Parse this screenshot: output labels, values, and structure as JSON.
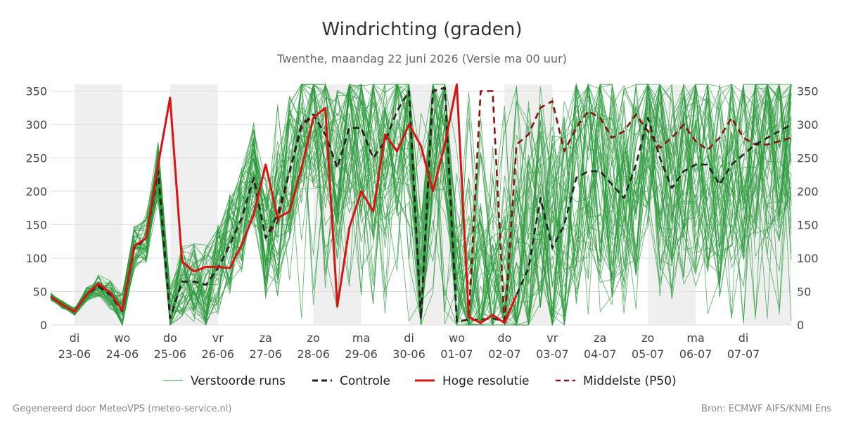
{
  "chart_data": {
    "type": "line",
    "title": "Windrichting (graden)",
    "subtitle": "Twenthe, maandag 22 juni 2026 (Versie ma 00 uur)",
    "xlabel": "",
    "ylabel": "",
    "ylim": [
      0,
      360
    ],
    "yticks": [
      0,
      50,
      100,
      150,
      200,
      250,
      300,
      350
    ],
    "x_range_hours": [
      -12,
      360
    ],
    "x_ticks": [
      {
        "day": "di",
        "date": "23-06"
      },
      {
        "day": "wo",
        "date": "24-06"
      },
      {
        "day": "do",
        "date": "25-06"
      },
      {
        "day": "vr",
        "date": "26-06"
      },
      {
        "day": "za",
        "date": "27-06"
      },
      {
        "day": "zo",
        "date": "28-06"
      },
      {
        "day": "ma",
        "date": "29-06"
      },
      {
        "day": "di",
        "date": "30-06"
      },
      {
        "day": "wo",
        "date": "01-07"
      },
      {
        "day": "do",
        "date": "02-07"
      },
      {
        "day": "vr",
        "date": "03-07"
      },
      {
        "day": "za",
        "date": "04-07"
      },
      {
        "day": "zo",
        "date": "05-07"
      },
      {
        "day": "ma",
        "date": "06-07"
      },
      {
        "day": "di",
        "date": "07-07"
      }
    ],
    "shaded_days": [
      [
        0,
        24
      ],
      [
        48,
        72
      ],
      [
        120,
        144
      ],
      [
        168,
        192
      ],
      [
        216,
        240
      ],
      [
        288,
        312
      ],
      [
        336,
        360
      ]
    ],
    "grid": true,
    "legend_position": "bottom",
    "ensemble_member_count": 50,
    "series": [
      {
        "name": "Controle",
        "color": "#222222",
        "style": "dashed",
        "x": [
          -12,
          -6,
          0,
          6,
          12,
          18,
          24,
          30,
          36,
          42,
          48,
          54,
          60,
          66,
          72,
          78,
          84,
          90,
          96,
          102,
          108,
          114,
          120,
          126,
          132,
          138,
          144,
          150,
          156,
          162,
          168,
          174,
          180,
          186,
          192,
          198,
          204,
          210,
          216,
          222,
          228,
          234,
          240,
          246,
          252,
          258,
          264,
          270,
          276,
          282,
          288,
          294,
          300,
          306,
          312,
          318,
          324,
          330,
          336,
          342,
          348,
          354,
          360
        ],
        "values": [
          42,
          30,
          20,
          45,
          58,
          45,
          20,
          115,
          130,
          230,
          10,
          65,
          65,
          60,
          85,
          120,
          160,
          220,
          130,
          165,
          230,
          300,
          315,
          285,
          235,
          295,
          295,
          250,
          275,
          320,
          350,
          10,
          350,
          355,
          5,
          8,
          8,
          10,
          5,
          45,
          85,
          190,
          115,
          150,
          220,
          230,
          230,
          210,
          190,
          240,
          310,
          250,
          205,
          230,
          240,
          240,
          210,
          240,
          255,
          270,
          280,
          290,
          300
        ]
      },
      {
        "name": "Hoge resolutie",
        "color": "#dd1111",
        "style": "solid",
        "x": [
          -12,
          -6,
          0,
          6,
          12,
          18,
          24,
          30,
          36,
          42,
          48,
          54,
          60,
          66,
          72,
          78,
          84,
          90,
          96,
          102,
          108,
          114,
          120,
          126,
          132,
          138,
          144,
          150,
          156,
          162,
          168,
          174,
          180,
          186,
          192,
          198,
          204,
          210,
          216,
          222
        ],
        "values": [
          42,
          30,
          20,
          45,
          62,
          48,
          22,
          118,
          130,
          240,
          340,
          95,
          80,
          87,
          87,
          85,
          120,
          165,
          240,
          160,
          170,
          235,
          310,
          325,
          28,
          145,
          200,
          170,
          285,
          260,
          300,
          268,
          200,
          270,
          360,
          12,
          3,
          15,
          3,
          45
        ]
      },
      {
        "name": "Middelste (P50)",
        "color": "#8b1010",
        "style": "dashed",
        "x": [
          -12,
          -6,
          0,
          6,
          12,
          18,
          24,
          30,
          36,
          42,
          48,
          54,
          60,
          66,
          72,
          78,
          84,
          90,
          96,
          102,
          108,
          114,
          120,
          126,
          132,
          138,
          144,
          150,
          156,
          162,
          168,
          174,
          180,
          186,
          192,
          198,
          204,
          210,
          216,
          222,
          228,
          234,
          240,
          246,
          252,
          258,
          264,
          270,
          276,
          282,
          288,
          294,
          300,
          306,
          312,
          318,
          324,
          330,
          336,
          342,
          348,
          354,
          360
        ],
        "values": [
          42,
          30,
          20,
          45,
          58,
          45,
          20,
          115,
          130,
          230,
          10,
          65,
          65,
          60,
          85,
          120,
          160,
          220,
          130,
          155,
          230,
          295,
          315,
          285,
          235,
          295,
          295,
          250,
          275,
          320,
          350,
          10,
          350,
          355,
          5,
          8,
          350,
          350,
          0,
          270,
          285,
          325,
          335,
          260,
          295,
          320,
          310,
          280,
          290,
          315,
          290,
          265,
          280,
          300,
          275,
          262,
          280,
          310,
          280,
          270,
          270,
          275,
          280
        ]
      }
    ]
  },
  "legend": {
    "perturbed_label": "Verstoorde runs",
    "control_label": "Controle",
    "hires_label": "Hoge resolutie",
    "median_label": "Middelste (P50)"
  },
  "footer": {
    "left": "Gegenereerd door MeteoVPS (meteo-service.nl)",
    "right": "Bron: ECMWF AIFS/KNMI Ens"
  },
  "colors": {
    "ensemble": "#2a9a3a",
    "shade": "#efefef",
    "grid": "#dddddd"
  }
}
